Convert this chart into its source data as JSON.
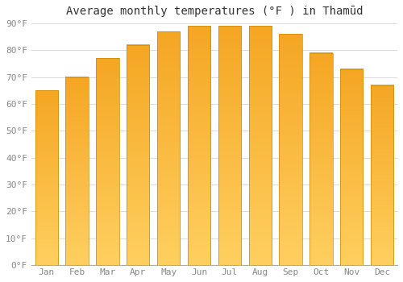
{
  "title": "Average monthly temperatures (°F ) in Thamūd",
  "months": [
    "Jan",
    "Feb",
    "Mar",
    "Apr",
    "May",
    "Jun",
    "Jul",
    "Aug",
    "Sep",
    "Oct",
    "Nov",
    "Dec"
  ],
  "values": [
    65,
    70,
    77,
    82,
    87,
    89,
    89,
    89,
    86,
    79,
    73,
    67
  ],
  "bar_color_main": "#F5A623",
  "bar_color_light": "#FFD060",
  "ylim": [
    0,
    90
  ],
  "yticks": [
    0,
    10,
    20,
    30,
    40,
    50,
    60,
    70,
    80,
    90
  ],
  "ytick_labels": [
    "0°F",
    "10°F",
    "20°F",
    "30°F",
    "40°F",
    "50°F",
    "60°F",
    "70°F",
    "80°F",
    "90°F"
  ],
  "background_color": "#ffffff",
  "grid_color": "#dddddd",
  "title_fontsize": 10,
  "tick_fontsize": 8,
  "bar_width": 0.75
}
